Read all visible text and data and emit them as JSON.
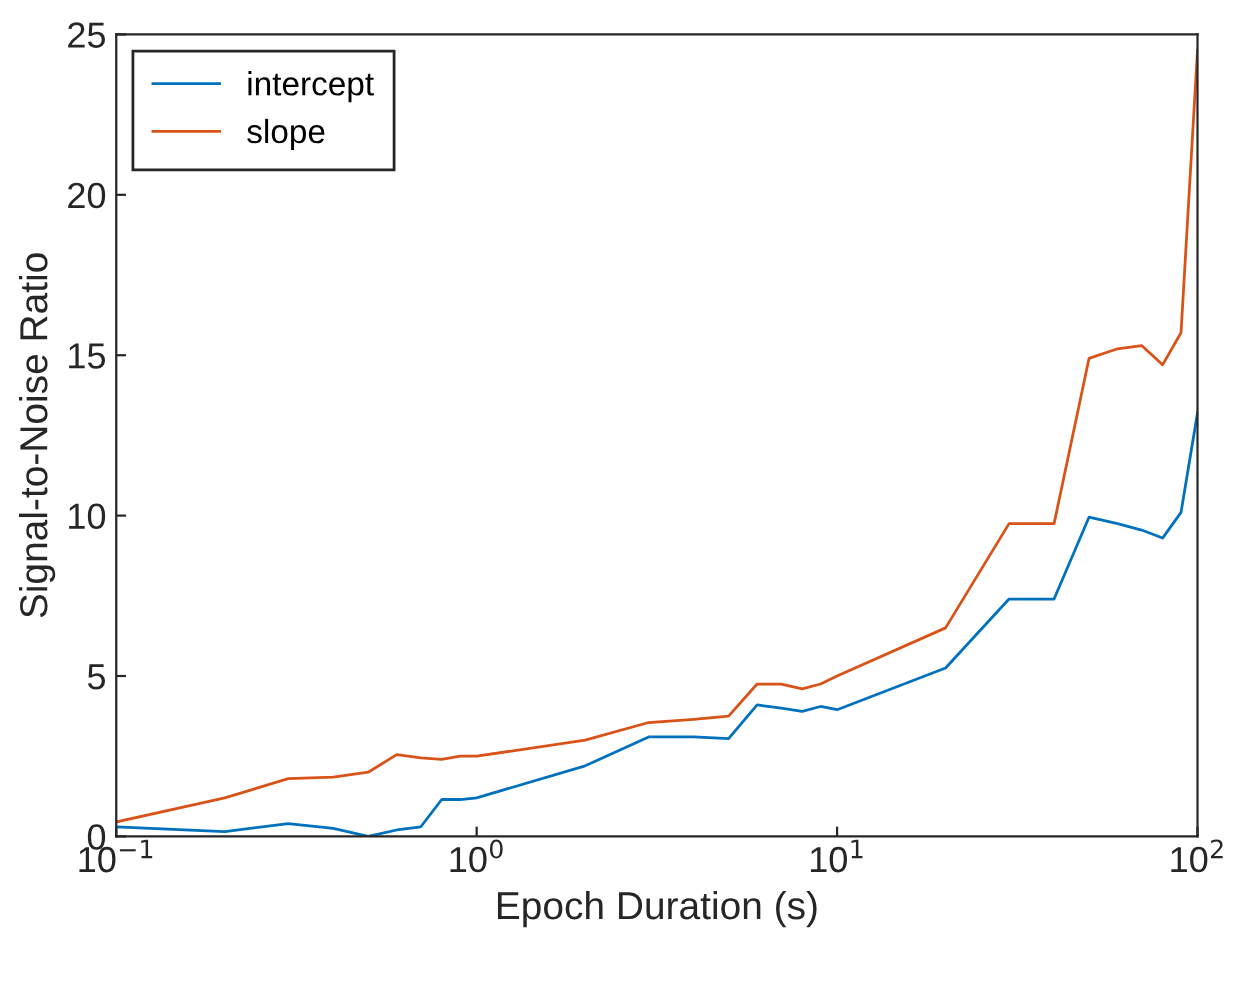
{
  "chart_data": {
    "type": "line",
    "xlabel": "Epoch Duration (s)",
    "ylabel": "Signal-to-Noise Ratio",
    "log": "x",
    "x": [
      0.1,
      0.2,
      0.3,
      0.4,
      0.5,
      0.6,
      0.7,
      0.8,
      0.9,
      1,
      2,
      3,
      4,
      5,
      6,
      7,
      8,
      9,
      10,
      20,
      30,
      40,
      50,
      60,
      70,
      80,
      90,
      100
    ],
    "series": [
      {
        "name": "intercept",
        "color": "#0072bd",
        "values": [
          0.3,
          0.15,
          0.4,
          0.25,
          0.0,
          0.2,
          0.3,
          1.15,
          1.15,
          1.2,
          2.2,
          3.1,
          3.1,
          3.05,
          4.1,
          4.0,
          3.9,
          4.05,
          3.95,
          5.25,
          7.4,
          7.4,
          9.95,
          9.75,
          9.55,
          9.3,
          10.1,
          13.2
        ]
      },
      {
        "name": "slope",
        "color": "#d95319",
        "values": [
          0.45,
          1.2,
          1.8,
          1.85,
          2.0,
          2.55,
          2.45,
          2.4,
          2.5,
          2.5,
          3.0,
          3.55,
          3.65,
          3.75,
          4.75,
          4.75,
          4.6,
          4.75,
          5.0,
          6.5,
          9.75,
          9.75,
          14.9,
          15.2,
          15.3,
          14.7,
          15.7,
          24.5
        ]
      }
    ],
    "xlim": [
      0.1,
      100
    ],
    "ylim": [
      0,
      25
    ],
    "xticks": [
      {
        "value": 0.1,
        "label": "10$^{−1}$"
      },
      {
        "value": 1,
        "label": "10$^{0}$"
      },
      {
        "value": 10,
        "label": "10$^{1}$"
      },
      {
        "value": 100,
        "label": "10$^{2}$"
      }
    ],
    "yticks": [
      0,
      5,
      10,
      15,
      20,
      25
    ],
    "grid": false,
    "legend": "top left",
    "marker": "none",
    "line_style": "solid"
  }
}
